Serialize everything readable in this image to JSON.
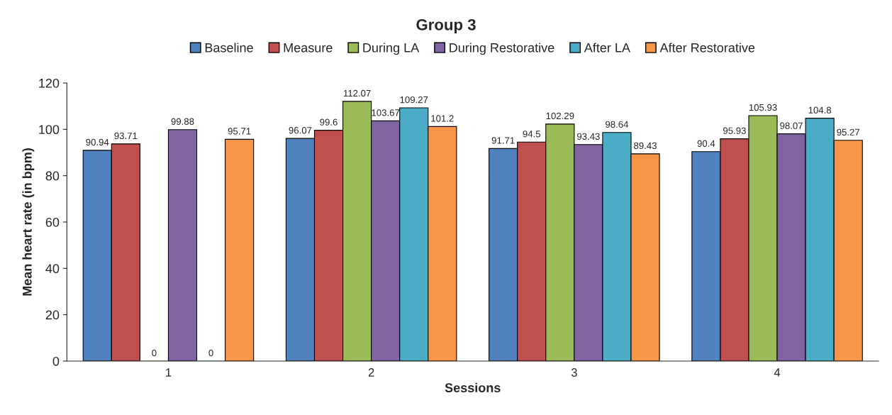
{
  "chart_data": {
    "type": "bar",
    "title": "Group 3",
    "xlabel": "Sessions",
    "ylabel": "Mean heart rate (in bpm)",
    "categories": [
      "1",
      "2",
      "3",
      "4"
    ],
    "series": [
      {
        "name": "Baseline",
        "color": "#4f81bd",
        "values": [
          90.94,
          96.07,
          91.71,
          90.4
        ]
      },
      {
        "name": "Measure",
        "color": "#c0504d",
        "values": [
          93.71,
          99.6,
          94.5,
          95.93
        ]
      },
      {
        "name": "During LA",
        "color": "#9bbb59",
        "values": [
          0,
          112.07,
          102.29,
          105.93
        ]
      },
      {
        "name": "During Restorative",
        "color": "#8064a2",
        "values": [
          99.88,
          103.67,
          93.43,
          98.07
        ]
      },
      {
        "name": "After LA",
        "color": "#4bacc6",
        "values": [
          0,
          109.27,
          98.64,
          104.8
        ]
      },
      {
        "name": "After Restorative",
        "color": "#f79646",
        "values": [
          95.71,
          101.2,
          89.43,
          95.27
        ]
      }
    ],
    "ylim": [
      0,
      120
    ],
    "yticks": [
      0,
      20,
      40,
      60,
      80,
      100,
      120
    ],
    "grid": false,
    "legend": "top",
    "data_labels": true
  }
}
